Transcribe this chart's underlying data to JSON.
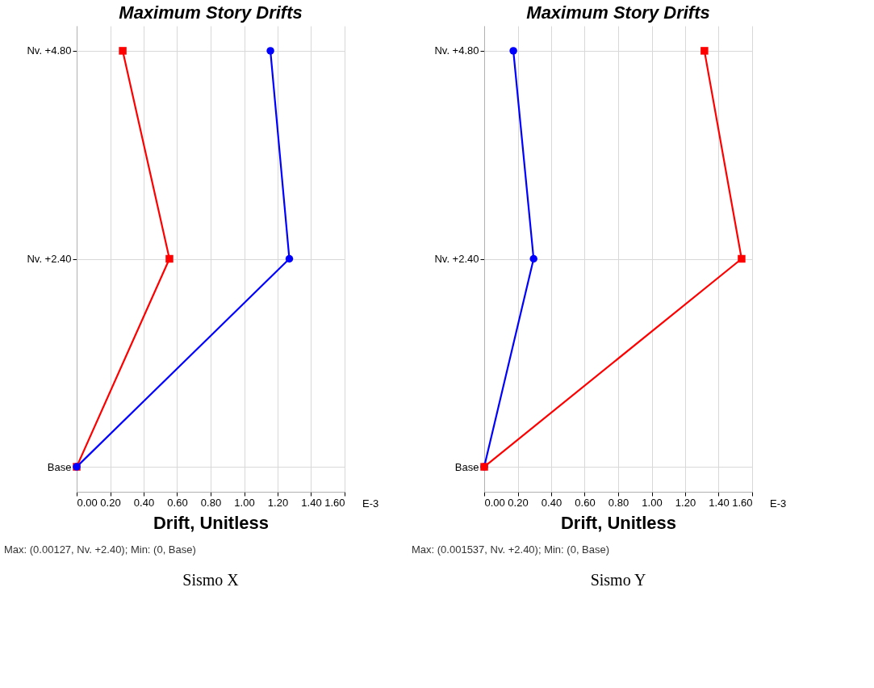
{
  "chart_data": [
    {
      "type": "line",
      "title": "Maximum Story Drifts",
      "xlabel": "Drift, Unitless",
      "orientation": "horizontal",
      "categories": [
        "Nv. +4.80",
        "Nv. +2.40",
        "Base"
      ],
      "series": [
        {
          "color": "#ff0000",
          "marker": "square",
          "values": [
            0.275,
            0.554,
            0
          ]
        },
        {
          "color": "#0000ff",
          "marker": "circle",
          "values": [
            1.157,
            1.27,
            0
          ]
        }
      ],
      "xlim": [
        0,
        1.6
      ],
      "xticks": [
        {
          "value": 0,
          "label": "0.00"
        },
        {
          "value": 0.2,
          "label": "0.20"
        },
        {
          "value": 0.4,
          "label": "0.40"
        },
        {
          "value": 0.6,
          "label": "0.60"
        },
        {
          "value": 0.8,
          "label": "0.80"
        },
        {
          "value": 1.0,
          "label": "1.00"
        },
        {
          "value": 1.2,
          "label": "1.20"
        },
        {
          "value": 1.4,
          "label": "1.40"
        },
        {
          "value": 1.6,
          "label": "1.60"
        }
      ],
      "grid": true,
      "legend": false,
      "line_style": "solid",
      "annotations": [
        "E-3",
        "Max: (0.00127, Nv. +2.40);   Min: (0, Base)",
        "Sismo X"
      ]
    },
    {
      "type": "line",
      "title": "Maximum Story Drifts",
      "xlabel": "Drift, Unitless",
      "orientation": "horizontal",
      "categories": [
        "Nv. +4.80",
        "Nv. +2.40",
        "Base"
      ],
      "series": [
        {
          "color": "#0000ff",
          "marker": "circle",
          "values": [
            0.174,
            0.295,
            0
          ]
        },
        {
          "color": "#ff0000",
          "marker": "square",
          "values": [
            1.315,
            1.537,
            0
          ]
        }
      ],
      "xlim": [
        0,
        1.6
      ],
      "xticks": [
        {
          "value": 0,
          "label": "0.00"
        },
        {
          "value": 0.2,
          "label": "0.20"
        },
        {
          "value": 0.4,
          "label": "0.40"
        },
        {
          "value": 0.6,
          "label": "0.60"
        },
        {
          "value": 0.8,
          "label": "0.80"
        },
        {
          "value": 1.0,
          "label": "1.00"
        },
        {
          "value": 1.2,
          "label": "1.20"
        },
        {
          "value": 1.4,
          "label": "1.40"
        },
        {
          "value": 1.6,
          "label": "1.60"
        }
      ],
      "grid": true,
      "legend": false,
      "line_style": "solid",
      "annotations": [
        "E-3",
        "Max: (0.001537, Nv. +2.40);   Min: (0, Base)",
        "Sismo Y"
      ]
    }
  ]
}
